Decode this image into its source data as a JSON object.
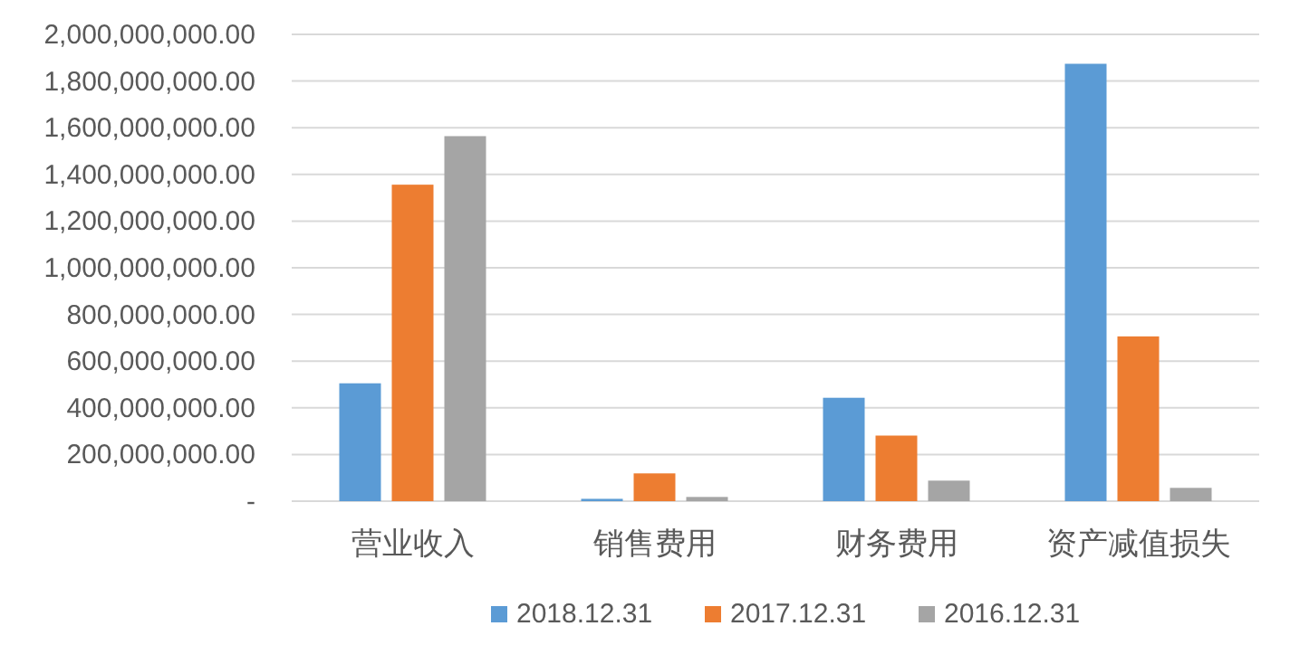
{
  "chart_data": {
    "type": "bar",
    "categories": [
      "营业收入",
      "销售费用",
      "财务费用",
      "资产减值损失"
    ],
    "series": [
      {
        "name": "2018.12.31",
        "color": "#5b9bd5",
        "values": [
          505000000,
          10000000,
          443000000,
          1874000000
        ]
      },
      {
        "name": "2017.12.31",
        "color": "#ed7d31",
        "values": [
          1356000000,
          119000000,
          281000000,
          706000000
        ]
      },
      {
        "name": "2016.12.31",
        "color": "#a5a5a5",
        "values": [
          1564000000,
          18000000,
          88000000,
          57000000
        ]
      }
    ],
    "ylim": [
      0,
      2000000000
    ],
    "yticks": [
      {
        "value": 0,
        "label": "-"
      },
      {
        "value": 200000000,
        "label": "200,000,000.00"
      },
      {
        "value": 400000000,
        "label": "400,000,000.00"
      },
      {
        "value": 600000000,
        "label": "600,000,000.00"
      },
      {
        "value": 800000000,
        "label": "800,000,000.00"
      },
      {
        "value": 1000000000,
        "label": "1,000,000,000.00"
      },
      {
        "value": 1200000000,
        "label": "1,200,000,000.00"
      },
      {
        "value": 1400000000,
        "label": "1,400,000,000.00"
      },
      {
        "value": 1600000000,
        "label": "1,600,000,000.00"
      },
      {
        "value": 1800000000,
        "label": "1,800,000,000.00"
      },
      {
        "value": 2000000000,
        "label": "2,000,000,000.00"
      }
    ],
    "grid": "y",
    "legend": "bottom"
  }
}
